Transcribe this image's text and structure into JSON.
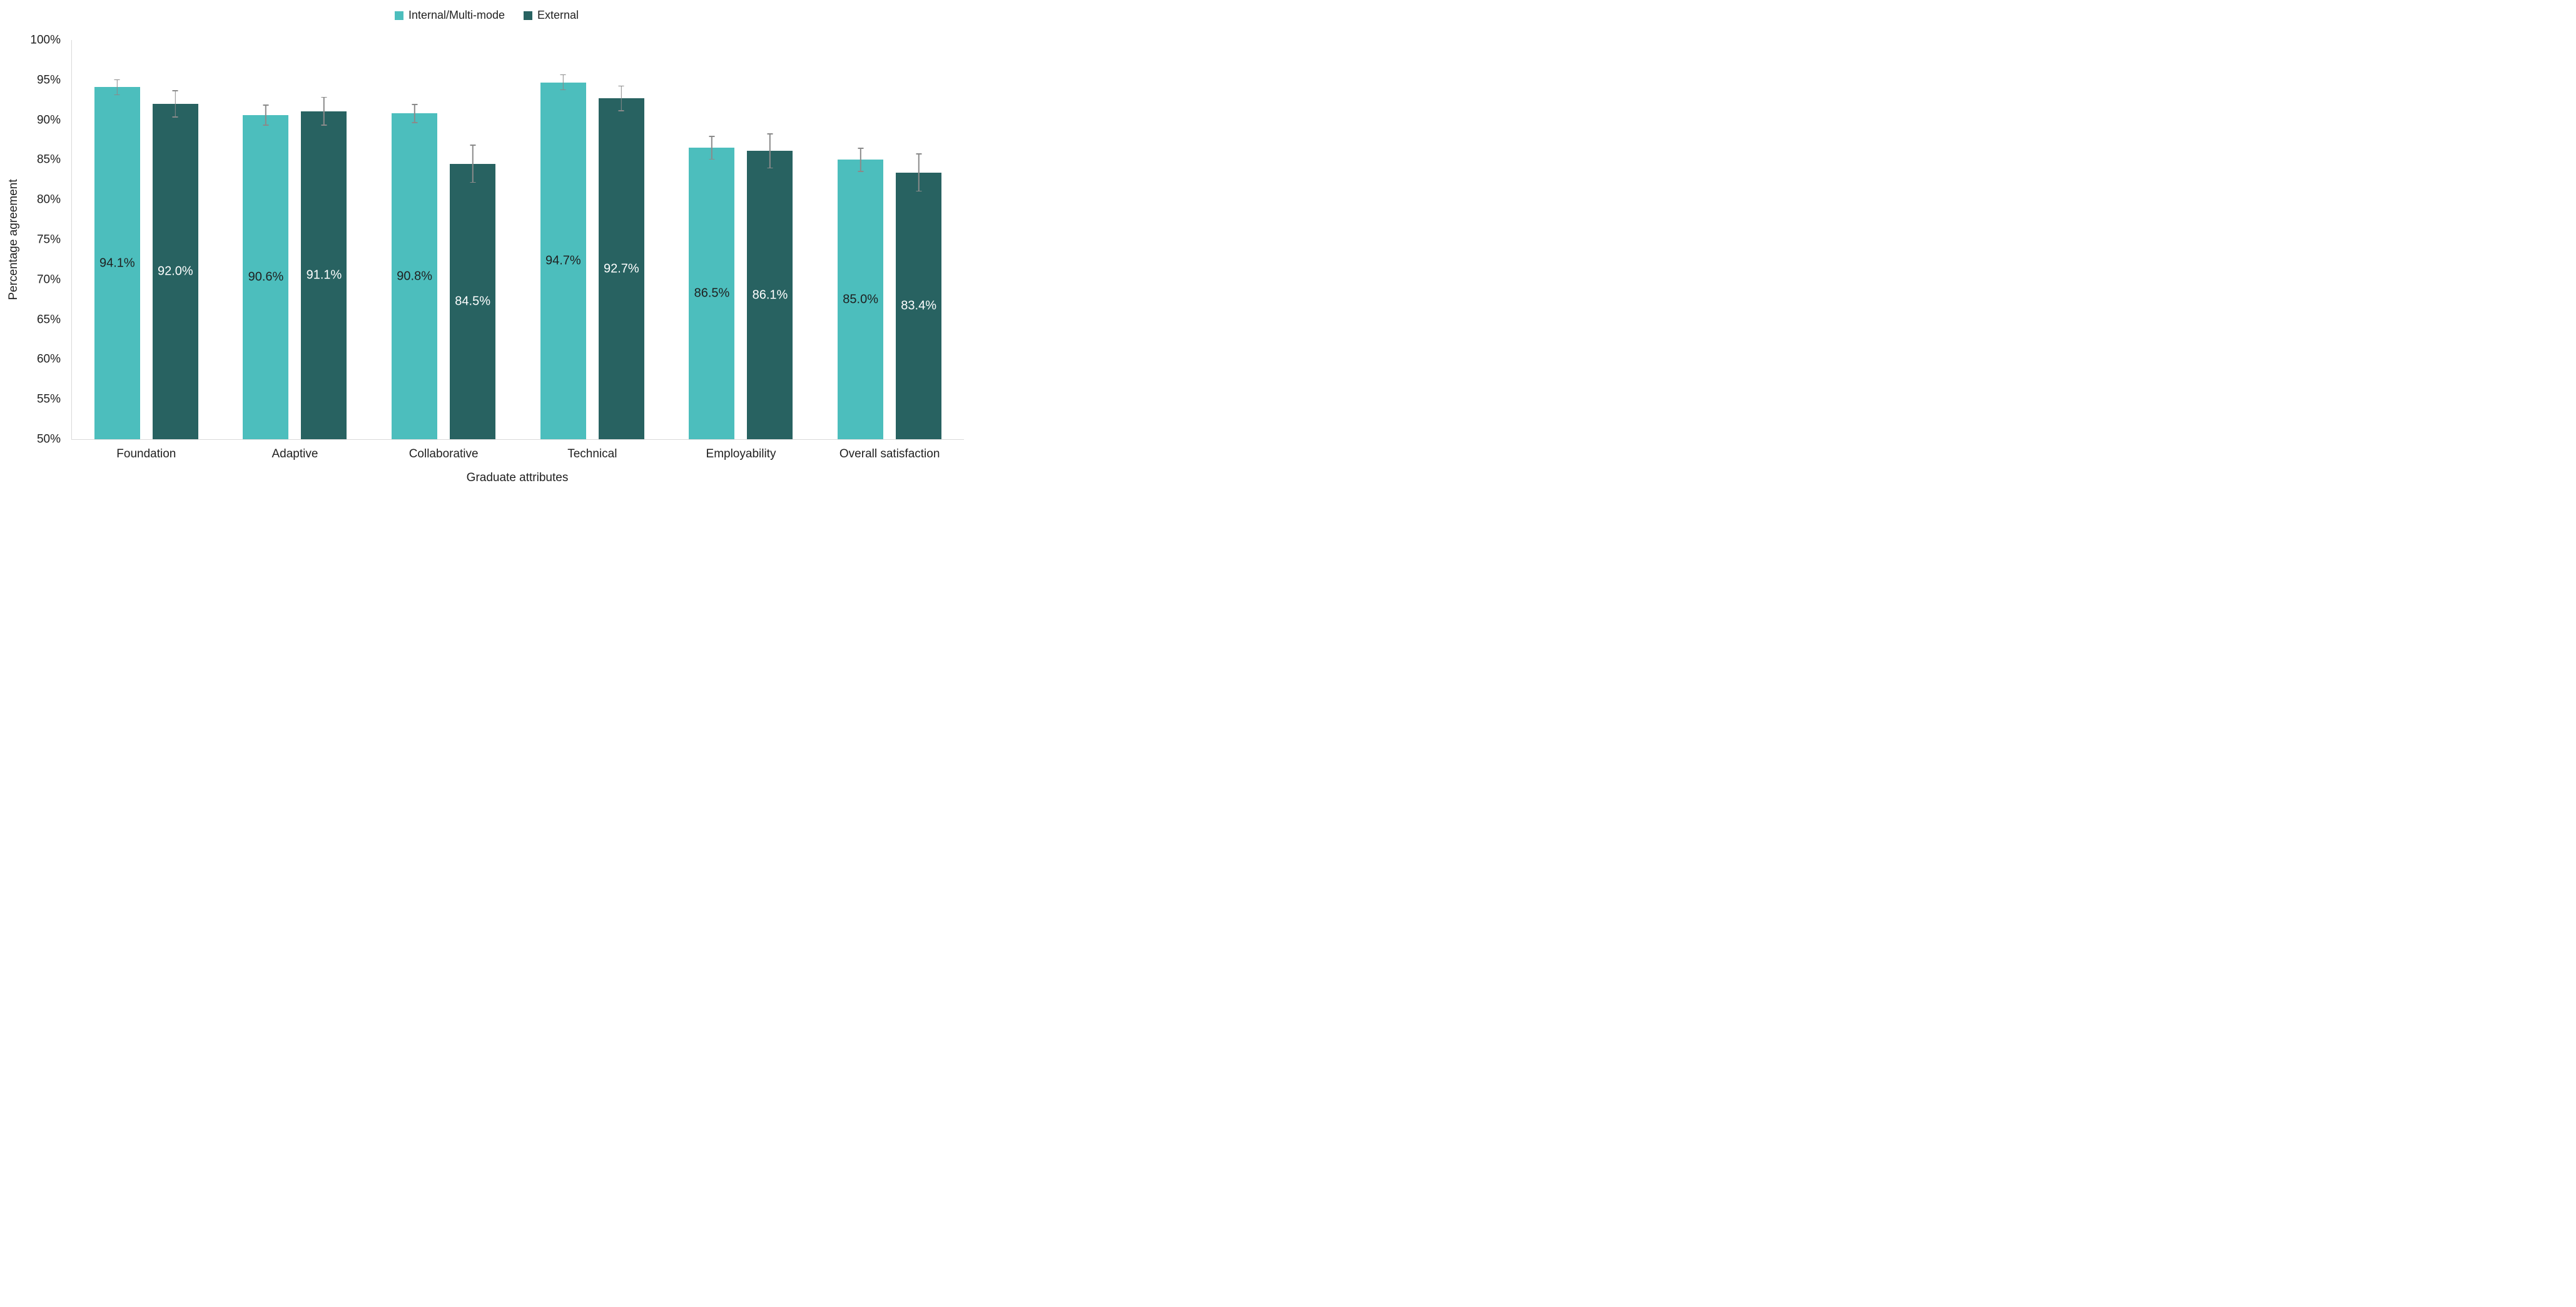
{
  "chart_data": {
    "type": "bar",
    "categories": [
      "Foundation",
      "Adaptive",
      "Collaborative",
      "Technical",
      "Employability",
      "Overall satisfaction"
    ],
    "series": [
      {
        "name": "Internal/Multi-mode",
        "color": "#4CBEBD",
        "label_color": "#1F1F1F",
        "values": [
          94.1,
          90.6,
          90.8,
          94.7,
          86.5,
          85.0
        ],
        "errors": [
          1.0,
          1.3,
          1.2,
          1.0,
          1.5,
          1.5
        ]
      },
      {
        "name": "External",
        "color": "#286261",
        "label_color": "#FFFFFF",
        "values": [
          92.0,
          91.1,
          84.5,
          92.7,
          86.1,
          83.4
        ],
        "errors": [
          1.7,
          1.8,
          2.4,
          1.6,
          2.2,
          2.4
        ]
      }
    ],
    "xlabel": "Graduate attributes",
    "ylabel": "Percentage agreement",
    "ylim": [
      50,
      100
    ],
    "ytick_step": 5,
    "ytick_suffix": "%",
    "value_label_format": "one-decimal-percent",
    "value_label_position": "inside-center",
    "grid": false,
    "legend_position": "top-center",
    "error_bars": true,
    "error_color": "#8A8A8A",
    "axis_line_color": "#D9D9D9",
    "text_color": "#212121"
  }
}
